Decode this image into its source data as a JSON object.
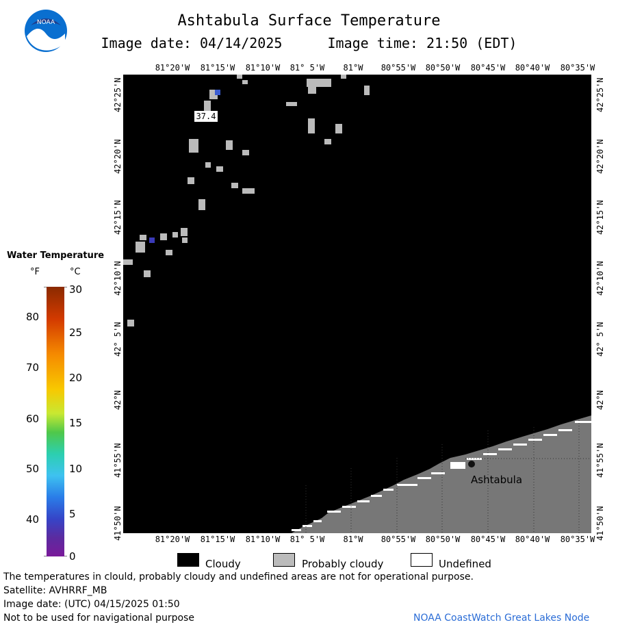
{
  "header": {
    "title": "Ashtabula Surface Temperature",
    "image_date": "Image date: 04/14/2025",
    "image_time": "Image time: 21:50 (EDT)",
    "logo_text": "NOAA"
  },
  "map": {
    "lon_labels": [
      "81°20'W",
      "81°15'W",
      "81°10'W",
      "81° 5'W",
      "81°W",
      "80°55'W",
      "80°50'W",
      "80°45'W",
      "80°40'W",
      "80°35'W"
    ],
    "lat_labels": [
      "42°25'N",
      "42°20'N",
      "42°15'N",
      "42°10'N",
      "42° 5'N",
      "42°N",
      "41°55'N",
      "41°50'N"
    ],
    "temp_label": "37.4",
    "city_label": "Ashtabula",
    "colors": {
      "water_cloudy": "#000000",
      "land": "#777777",
      "probably_cloudy": "#bbbbbb",
      "warm_pixel": "#3a5cd0"
    }
  },
  "legend": {
    "title": "Water Temperature",
    "unit_f": "°F",
    "unit_c": "°C",
    "f_ticks": [
      "80",
      "70",
      "60",
      "50",
      "40"
    ],
    "c_ticks": [
      "30",
      "25",
      "20",
      "15",
      "10",
      "5",
      "0"
    ]
  },
  "key": {
    "cloudy": "Cloudy",
    "probably_cloudy": "Probably cloudy",
    "undefined": "Undefined"
  },
  "footer": {
    "disclaimer": "The temperatures in clould, probably cloudy and undefined areas are not for operational purpose.",
    "satellite": "Satellite: AVHRRF_MB",
    "utc_date": "Image date: (UTC) 04/15/2025  01:50",
    "nav_warning": "Not to be used for navigational purpose",
    "credit": "NOAA CoastWatch Great Lakes Node"
  }
}
